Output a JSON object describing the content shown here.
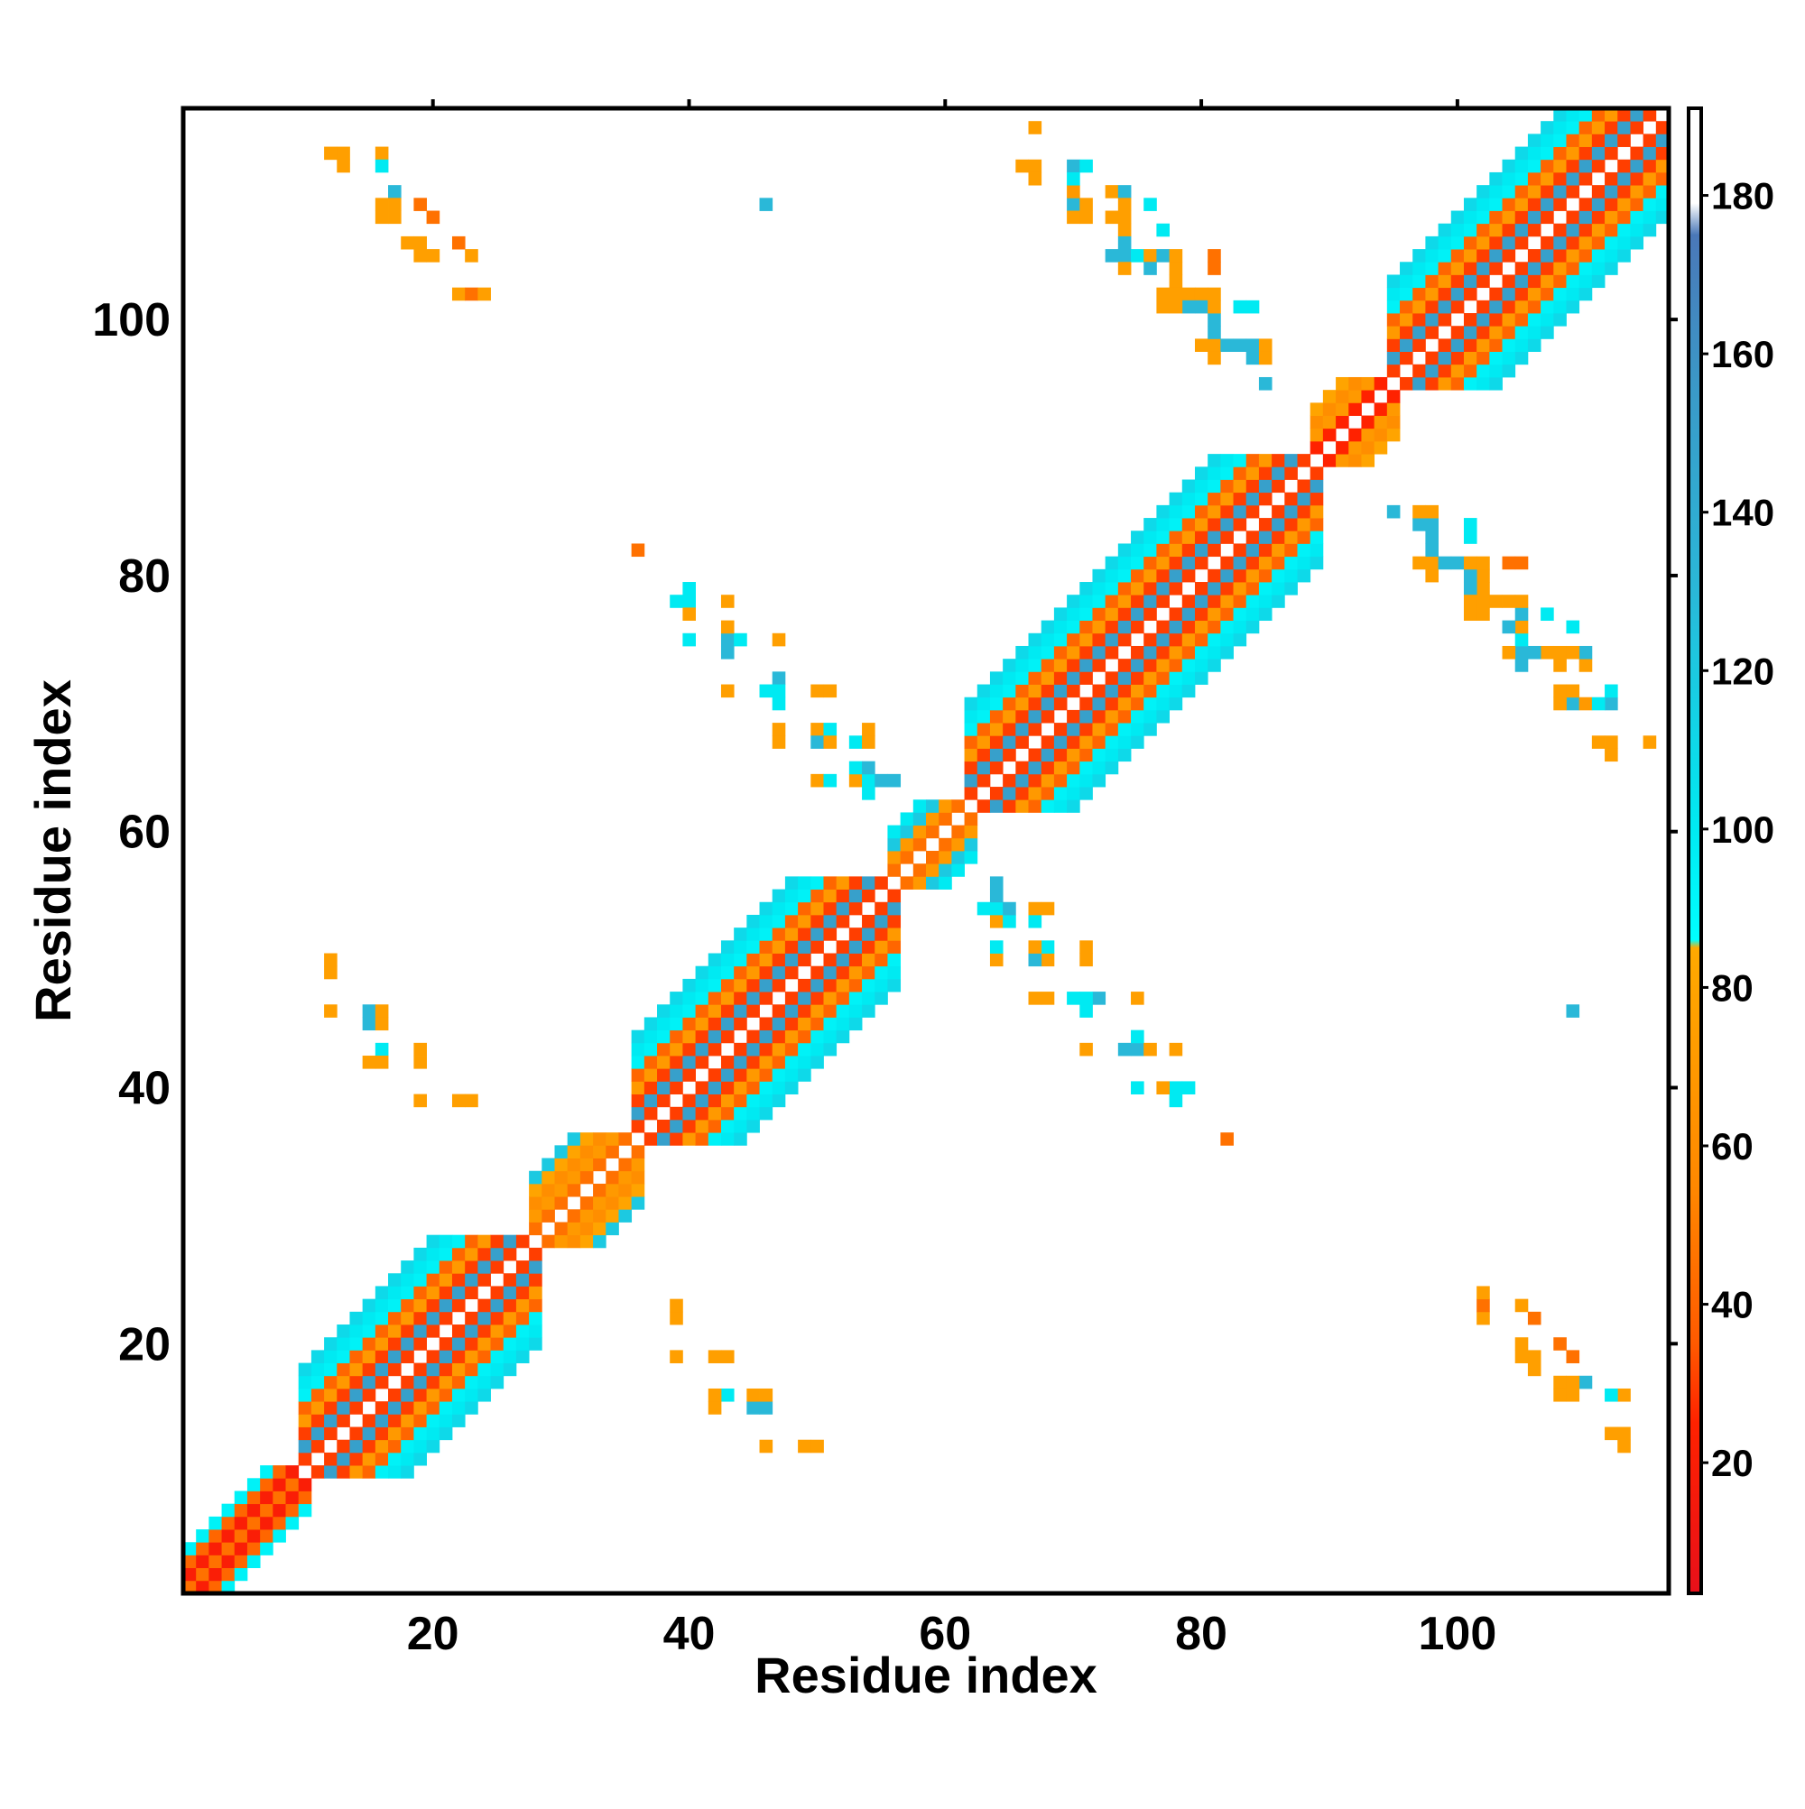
{
  "chart_data": {
    "type": "heatmap",
    "title": "",
    "xlabel": "Residue index",
    "ylabel": "Residue index",
    "xlim": [
      0.5,
      116.5
    ],
    "ylim": [
      0.5,
      116.5
    ],
    "x_ticks": [
      20,
      40,
      60,
      80,
      100
    ],
    "y_ticks": [
      20,
      40,
      60,
      80,
      100
    ],
    "tick_labels_x": [
      "20",
      "40",
      "60",
      "80",
      "100"
    ],
    "tick_labels_y": [
      "20",
      "40",
      "60",
      "80",
      "100"
    ],
    "colorbar": {
      "range": [
        3.5,
        191
      ],
      "ticks": [
        20,
        40,
        60,
        80,
        100,
        120,
        140,
        160,
        180
      ],
      "tick_labels": [
        "20",
        "40",
        "60",
        "80",
        "100",
        "120",
        "140",
        "160",
        "180"
      ],
      "stops": [
        {
          "value": 3.5,
          "color": "#e8101a"
        },
        {
          "value": 25,
          "color": "#ff2200"
        },
        {
          "value": 35,
          "color": "#ff5a00"
        },
        {
          "value": 55,
          "color": "#ff8800"
        },
        {
          "value": 85,
          "color": "#ffaa00"
        },
        {
          "value": 86,
          "color": "#00ffff"
        },
        {
          "value": 100,
          "color": "#00eaf2"
        },
        {
          "value": 130,
          "color": "#2ab8d8"
        },
        {
          "value": 155,
          "color": "#3a9ac8"
        },
        {
          "value": 175,
          "color": "#4a78b8"
        },
        {
          "value": 179,
          "color": "#ffffff"
        },
        {
          "value": 191,
          "color": "#ffffff"
        }
      ]
    },
    "diagonal_band": {
      "description_values": "value by |i-j| offset along diagonal segments",
      "segments": [
        {
          "start": 1,
          "end": 10,
          "profile": [
            45,
            20,
            40,
            95
          ]
        },
        {
          "start": 10,
          "end": 28,
          "profile": [
            180,
            30,
            150,
            30,
            70,
            40,
            95,
            100,
            110
          ]
        },
        {
          "start": 28,
          "end": 36,
          "profile": [
            180,
            45,
            70,
            60,
            80,
            120
          ]
        },
        {
          "start": 36,
          "end": 56,
          "profile": [
            180,
            30,
            150,
            30,
            70,
            40,
            95,
            100,
            110
          ]
        },
        {
          "start": 56,
          "end": 62,
          "profile": [
            180,
            45,
            70,
            120,
            100
          ]
        },
        {
          "start": 62,
          "end": 89,
          "profile": [
            180,
            30,
            150,
            30,
            70,
            40,
            95,
            100,
            110
          ]
        },
        {
          "start": 89,
          "end": 95,
          "profile": [
            180,
            25,
            70,
            60,
            80
          ]
        },
        {
          "start": 95,
          "end": 116,
          "profile": [
            180,
            30,
            150,
            30,
            70,
            40,
            95,
            100,
            110
          ]
        }
      ]
    },
    "off_diagonal_cells": [
      [
        12,
        113,
        75
      ],
      [
        13,
        113,
        75
      ],
      [
        13,
        112,
        70
      ],
      [
        16,
        113,
        70
      ],
      [
        16,
        112,
        100
      ],
      [
        17,
        110,
        110
      ],
      [
        16,
        109,
        75
      ],
      [
        17,
        109,
        70
      ],
      [
        19,
        109,
        45
      ],
      [
        18,
        106,
        75
      ],
      [
        19,
        106,
        75
      ],
      [
        22,
        106,
        45
      ],
      [
        22,
        102,
        75
      ],
      [
        23,
        102,
        75
      ],
      [
        46,
        109,
        130
      ],
      [
        67,
        115,
        75
      ],
      [
        66,
        112,
        75
      ],
      [
        67,
        112,
        75
      ],
      [
        67,
        111,
        70
      ],
      [
        70,
        112,
        100
      ],
      [
        71,
        112,
        100
      ],
      [
        70,
        109,
        75
      ],
      [
        71,
        109,
        75
      ],
      [
        70,
        110,
        70
      ],
      [
        73,
        110,
        75
      ],
      [
        74,
        110,
        130
      ],
      [
        74,
        109,
        75
      ],
      [
        76,
        109,
        100
      ],
      [
        74,
        107,
        130
      ],
      [
        73,
        105,
        130
      ],
      [
        74,
        105,
        130
      ],
      [
        75,
        105,
        130
      ],
      [
        76,
        105,
        75
      ],
      [
        76,
        104,
        100
      ],
      [
        77,
        105,
        75
      ],
      [
        74,
        104,
        75
      ],
      [
        78,
        103,
        75
      ],
      [
        78,
        102,
        70
      ],
      [
        79,
        102,
        75
      ],
      [
        80,
        102,
        75
      ],
      [
        80,
        101,
        100
      ],
      [
        81,
        100,
        130
      ],
      [
        79,
        101,
        130
      ],
      [
        83,
        101,
        100
      ],
      [
        80,
        98,
        75
      ],
      [
        81,
        98,
        75
      ],
      [
        82,
        98,
        130
      ],
      [
        83,
        98,
        130
      ],
      [
        84,
        98,
        75
      ],
      [
        85,
        98,
        75
      ],
      [
        81,
        97,
        75
      ],
      [
        84,
        97,
        130
      ],
      [
        85,
        97,
        75
      ],
      [
        85,
        95,
        130
      ],
      [
        81,
        105,
        45
      ],
      [
        36,
        82,
        60
      ],
      [
        39,
        78,
        100
      ],
      [
        40,
        79,
        130
      ],
      [
        40,
        78,
        130
      ],
      [
        43,
        78,
        70
      ],
      [
        40,
        75,
        100
      ],
      [
        43,
        75,
        70
      ],
      [
        44,
        75,
        130
      ],
      [
        43,
        74,
        130
      ],
      [
        47,
        75,
        75
      ],
      [
        43,
        71,
        75
      ],
      [
        46,
        71,
        100
      ],
      [
        47,
        72,
        130
      ],
      [
        47,
        71,
        130
      ],
      [
        47,
        70,
        75
      ],
      [
        50,
        71,
        75
      ],
      [
        51,
        71,
        75
      ],
      [
        47,
        68,
        75
      ],
      [
        50,
        68,
        75
      ],
      [
        50,
        67,
        130
      ],
      [
        51,
        68,
        100
      ],
      [
        53,
        67,
        130
      ],
      [
        54,
        68,
        75
      ],
      [
        54,
        67,
        75
      ],
      [
        50,
        64,
        75
      ],
      [
        51,
        64,
        100
      ],
      [
        53,
        64,
        75
      ],
      [
        54,
        64,
        75
      ],
      [
        55,
        64,
        130
      ],
      [
        56,
        64,
        130
      ],
      [
        54,
        63,
        75
      ],
      [
        53,
        65,
        100
      ],
      [
        12,
        50,
        75
      ],
      [
        12,
        49,
        75
      ],
      [
        12,
        46,
        75
      ],
      [
        15,
        46,
        75
      ],
      [
        16,
        46,
        75
      ],
      [
        15,
        45,
        130
      ],
      [
        16,
        43,
        100
      ],
      [
        15,
        42,
        75
      ],
      [
        16,
        42,
        75
      ],
      [
        19,
        43,
        75
      ],
      [
        19,
        42,
        75
      ],
      [
        19,
        39,
        75
      ],
      [
        22,
        39,
        75
      ],
      [
        23,
        39,
        75
      ],
      [
        64,
        56,
        130
      ],
      [
        64,
        55,
        130
      ],
      [
        63,
        54,
        100
      ],
      [
        64,
        54,
        100
      ],
      [
        65,
        54,
        130
      ],
      [
        67,
        54,
        75
      ],
      [
        68,
        54,
        75
      ],
      [
        67,
        53,
        100
      ],
      [
        64,
        51,
        100
      ],
      [
        67,
        51,
        75
      ],
      [
        68,
        51,
        100
      ],
      [
        71,
        51,
        75
      ],
      [
        67,
        47,
        75
      ],
      [
        68,
        47,
        75
      ],
      [
        70,
        47,
        100
      ],
      [
        71,
        47,
        100
      ],
      [
        72,
        47,
        130
      ],
      [
        71,
        46,
        100
      ],
      [
        75,
        47,
        75
      ],
      [
        75,
        44,
        100
      ],
      [
        75,
        43,
        130
      ],
      [
        71,
        43,
        75
      ],
      [
        74,
        43,
        130
      ],
      [
        76,
        43,
        75
      ],
      [
        78,
        43,
        75
      ],
      [
        77,
        40,
        75
      ],
      [
        78,
        40,
        100
      ],
      [
        79,
        40,
        100
      ],
      [
        78,
        39,
        100
      ],
      [
        75,
        40,
        100
      ],
      [
        82,
        36,
        45
      ],
      [
        109,
        46,
        130
      ],
      [
        95,
        85,
        130
      ],
      [
        97,
        85,
        75
      ],
      [
        98,
        85,
        75
      ],
      [
        98,
        84,
        130
      ],
      [
        98,
        83,
        130
      ],
      [
        101,
        84,
        100
      ],
      [
        97,
        81,
        75
      ],
      [
        98,
        81,
        75
      ],
      [
        99,
        81,
        130
      ],
      [
        100,
        81,
        130
      ],
      [
        101,
        81,
        75
      ],
      [
        102,
        81,
        75
      ],
      [
        101,
        80,
        130
      ],
      [
        102,
        80,
        75
      ],
      [
        104,
        81,
        45
      ],
      [
        101,
        78,
        75
      ],
      [
        102,
        78,
        75
      ],
      [
        104,
        78,
        75
      ],
      [
        105,
        78,
        75
      ],
      [
        101,
        77,
        75
      ],
      [
        102,
        77,
        75
      ],
      [
        105,
        77,
        130
      ],
      [
        104,
        76,
        130
      ],
      [
        105,
        75,
        100
      ],
      [
        107,
        77,
        100
      ],
      [
        104,
        74,
        75
      ],
      [
        105,
        74,
        130
      ],
      [
        106,
        74,
        130
      ],
      [
        107,
        74,
        75
      ],
      [
        108,
        74,
        75
      ],
      [
        108,
        73,
        75
      ],
      [
        108,
        71,
        75
      ],
      [
        109,
        71,
        75
      ],
      [
        108,
        70,
        75
      ],
      [
        109,
        70,
        130
      ],
      [
        111,
        70,
        100
      ],
      [
        112,
        71,
        100
      ],
      [
        112,
        70,
        130
      ],
      [
        111,
        67,
        75
      ],
      [
        112,
        67,
        75
      ],
      [
        112,
        66,
        75
      ],
      [
        115,
        67,
        75
      ],
      [
        39,
        23,
        75
      ],
      [
        39,
        22,
        75
      ],
      [
        39,
        19,
        75
      ],
      [
        42,
        19,
        75
      ],
      [
        43,
        19,
        75
      ],
      [
        42,
        16,
        75
      ],
      [
        42,
        15,
        75
      ],
      [
        45,
        16,
        75
      ],
      [
        45,
        15,
        130
      ],
      [
        46,
        15,
        130
      ],
      [
        46,
        16,
        75
      ],
      [
        46,
        12,
        75
      ],
      [
        49,
        12,
        75
      ],
      [
        50,
        12,
        75
      ],
      [
        102,
        24,
        75
      ],
      [
        102,
        23,
        45
      ],
      [
        105,
        23,
        75
      ],
      [
        105,
        20,
        75
      ],
      [
        105,
        19,
        75
      ],
      [
        108,
        20,
        45
      ],
      [
        108,
        17,
        75
      ],
      [
        109,
        17,
        75
      ],
      [
        108,
        16,
        75
      ],
      [
        109,
        16,
        75
      ],
      [
        110,
        17,
        130
      ],
      [
        112,
        16,
        100
      ],
      [
        113,
        16,
        75
      ],
      [
        112,
        13,
        75
      ],
      [
        113,
        13,
        75
      ],
      [
        113,
        12,
        75
      ]
    ]
  }
}
